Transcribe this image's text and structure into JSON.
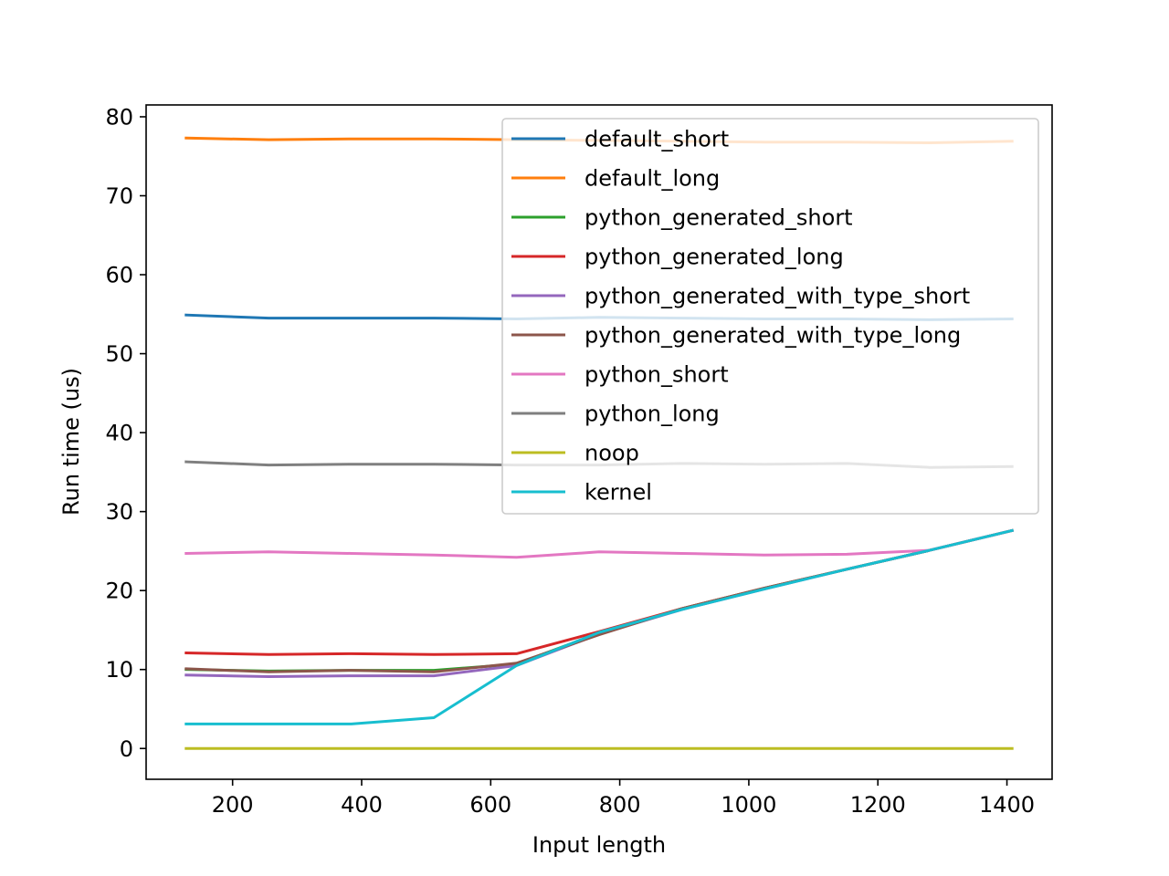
{
  "chart_data": {
    "type": "line",
    "xlabel": "Input length",
    "ylabel": "Run time (us)",
    "xlim": [
      66,
      1470
    ],
    "ylim": [
      -3.9,
      81.5
    ],
    "x_ticks": [
      200,
      400,
      600,
      800,
      1000,
      1200,
      1400
    ],
    "y_ticks": [
      0,
      10,
      20,
      30,
      40,
      50,
      60,
      70,
      80
    ],
    "grid": false,
    "legend_position": "upper right",
    "x": [
      128,
      256,
      384,
      512,
      640,
      768,
      896,
      1024,
      1152,
      1280,
      1408
    ],
    "series": [
      {
        "name": "default_short",
        "color": "#1f77b4",
        "values": [
          54.9,
          54.5,
          54.5,
          54.5,
          54.4,
          54.6,
          54.5,
          54.4,
          54.4,
          54.3,
          54.4
        ]
      },
      {
        "name": "default_long",
        "color": "#ff7f0e",
        "values": [
          77.3,
          77.1,
          77.2,
          77.2,
          77.1,
          77.0,
          76.9,
          76.8,
          76.8,
          76.7,
          76.9
        ]
      },
      {
        "name": "python_generated_short",
        "color": "#2ca02c",
        "values": [
          10.0,
          9.8,
          9.9,
          9.9,
          10.7,
          14.6,
          17.7,
          20.3,
          22.7,
          25.1,
          27.6
        ]
      },
      {
        "name": "python_generated_long",
        "color": "#d62728",
        "values": [
          12.1,
          11.9,
          12.0,
          11.9,
          12.0,
          14.8,
          17.7,
          20.3,
          22.7,
          25.1,
          27.6
        ]
      },
      {
        "name": "python_generated_with_type_short",
        "color": "#9467bd",
        "values": [
          9.3,
          9.1,
          9.2,
          9.2,
          10.5,
          14.5,
          17.6,
          20.2,
          22.7,
          25.1,
          27.6
        ]
      },
      {
        "name": "python_generated_with_type_long",
        "color": "#8c564b",
        "values": [
          10.1,
          9.7,
          9.9,
          9.7,
          10.8,
          14.4,
          17.7,
          20.3,
          22.7,
          25.1,
          27.6
        ]
      },
      {
        "name": "python_short",
        "color": "#e377c2",
        "values": [
          24.7,
          24.9,
          24.7,
          24.5,
          24.2,
          24.9,
          24.7,
          24.5,
          24.6,
          25.1,
          27.6
        ]
      },
      {
        "name": "python_long",
        "color": "#7f7f7f",
        "values": [
          36.3,
          35.9,
          36.0,
          36.0,
          35.9,
          35.9,
          36.1,
          36.0,
          36.1,
          35.6,
          35.7
        ]
      },
      {
        "name": "noop",
        "color": "#bcbd22",
        "values": [
          0.0,
          0.0,
          0.0,
          0.0,
          0.0,
          0.0,
          0.0,
          0.0,
          0.0,
          0.0,
          0.0
        ]
      },
      {
        "name": "kernel",
        "color": "#17becf",
        "values": [
          3.1,
          3.1,
          3.1,
          3.9,
          10.5,
          14.7,
          17.6,
          20.2,
          22.7,
          25.1,
          27.6
        ]
      }
    ]
  }
}
